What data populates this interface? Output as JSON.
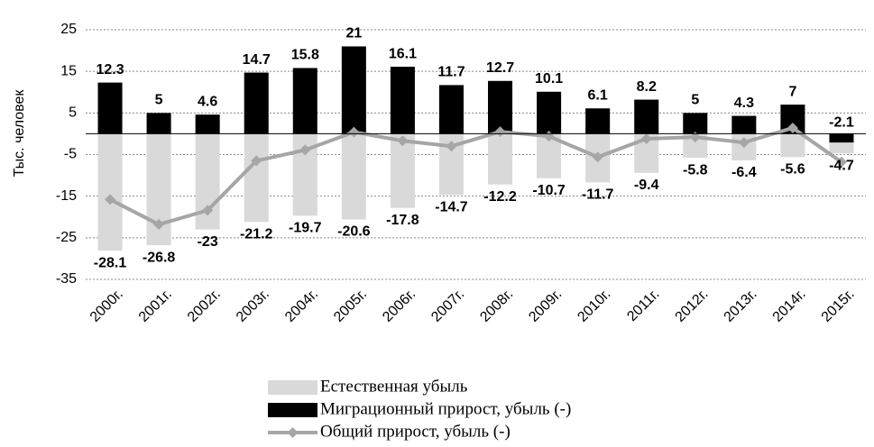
{
  "chart_data": {
    "type": "bar",
    "ylabel": "Тыс. человек",
    "categories": [
      "2000г.",
      "2001г.",
      "2002г.",
      "2003г.",
      "2004г.",
      "2005г.",
      "2006г.",
      "2007г.",
      "2008г.",
      "2009г.",
      "2010г.",
      "2011г.",
      "2012г.",
      "2013г.",
      "2014г.",
      "2015г."
    ],
    "series": [
      {
        "name": "Естественная убыль",
        "type": "bar",
        "color": "#d9d9d9",
        "values": [
          -28.1,
          -26.8,
          -23,
          -21.2,
          -19.7,
          -20.6,
          -17.8,
          -14.7,
          -12.2,
          -10.7,
          -11.7,
          -9.4,
          -5.8,
          -6.4,
          -5.6,
          -4.7
        ]
      },
      {
        "name": "Миграционный прирост, убыль (-)",
        "type": "bar",
        "color": "#000000",
        "values": [
          12.3,
          5,
          4.6,
          14.7,
          15.8,
          21,
          16.1,
          11.7,
          12.7,
          10.1,
          6.1,
          8.2,
          5,
          4.3,
          7,
          -2.1
        ]
      },
      {
        "name": "Общий прирост, убыль (-)",
        "type": "line",
        "color": "#a6a6a6",
        "values": [
          -15.8,
          -21.8,
          -18.4,
          -6.5,
          -3.9,
          0.4,
          -1.7,
          -3,
          0.5,
          -0.6,
          -5.6,
          -1.2,
          -0.8,
          -2.1,
          1.4,
          -6.8
        ]
      }
    ],
    "ylim": [
      -35,
      25
    ],
    "yticks": [
      -35,
      -25,
      -15,
      -5,
      5,
      15,
      25
    ],
    "grid": true
  }
}
